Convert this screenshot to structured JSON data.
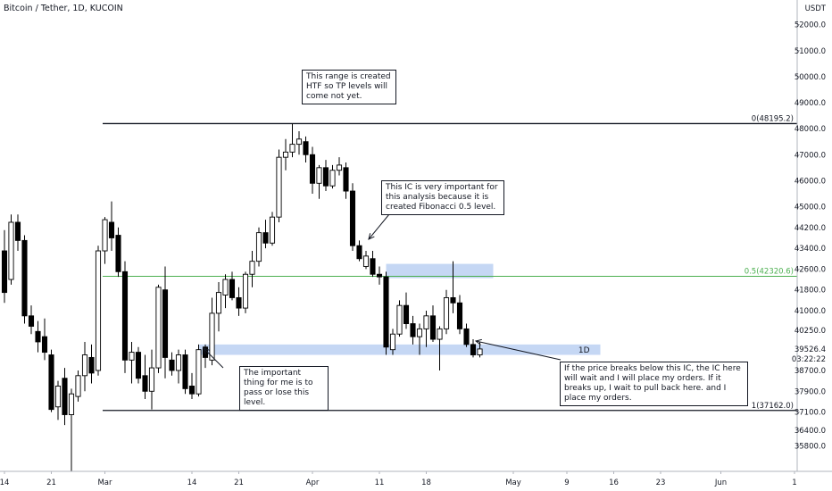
{
  "header": {
    "title": "Bitcoin / Tether, 1D, KUCOIN"
  },
  "currency_label": "USDT",
  "chart_data": {
    "type": "candlestick",
    "title": "Bitcoin / Tether, 1D, KUCOIN",
    "ylim": [
      35300,
      52400
    ],
    "y_ticks": [
      35800,
      36400,
      37100,
      37900,
      38700,
      39526.4,
      40250,
      41000,
      41800,
      42600,
      43400,
      44200,
      45000,
      46000,
      47000,
      48000,
      49000,
      50000,
      51000,
      52000
    ],
    "y_tick_labels": [
      "35800.0",
      "36400.0",
      "37100.0",
      "37900.0",
      "38700.0",
      "",
      "40250.0",
      "41000.0",
      "41800.0",
      "42600.0",
      "43400.0",
      "44200.0",
      "45000.0",
      "46000.0",
      "47000.0",
      "48000.0",
      "49000.0",
      "50000.0",
      "51000.0",
      "52000.0"
    ],
    "current_price": {
      "value": 39526.4,
      "label": "39526.4",
      "countdown": "03:22:22"
    },
    "x_labels": [
      {
        "label": "14",
        "day": 0
      },
      {
        "label": "21",
        "day": 7
      },
      {
        "label": "Mar",
        "day": 15
      },
      {
        "label": "14",
        "day": 28
      },
      {
        "label": "21",
        "day": 35
      },
      {
        "label": "Apr",
        "day": 46
      },
      {
        "label": "11",
        "day": 56
      },
      {
        "label": "18",
        "day": 63
      },
      {
        "label": "May",
        "day": 76
      },
      {
        "label": "9",
        "day": 84
      },
      {
        "label": "16",
        "day": 91
      },
      {
        "label": "23",
        "day": 98
      },
      {
        "label": "Jun",
        "day": 107
      },
      {
        "label": "1",
        "day": 118
      }
    ],
    "candles": [
      {
        "d": 0,
        "o": 43300,
        "h": 44100,
        "l": 41300,
        "c": 41700
      },
      {
        "d": 1,
        "o": 42200,
        "h": 44700,
        "l": 42000,
        "c": 44400
      },
      {
        "d": 2,
        "o": 44400,
        "h": 44700,
        "l": 43300,
        "c": 43700
      },
      {
        "d": 3,
        "o": 43700,
        "h": 43900,
        "l": 40500,
        "c": 40800
      },
      {
        "d": 4,
        "o": 40800,
        "h": 41200,
        "l": 40100,
        "c": 40400
      },
      {
        "d": 5,
        "o": 40200,
        "h": 40600,
        "l": 39400,
        "c": 39800
      },
      {
        "d": 6,
        "o": 40000,
        "h": 40700,
        "l": 39100,
        "c": 39400
      },
      {
        "d": 7,
        "o": 39300,
        "h": 39500,
        "l": 37100,
        "c": 37200
      },
      {
        "d": 8,
        "o": 37300,
        "h": 38300,
        "l": 36800,
        "c": 38100
      },
      {
        "d": 9,
        "o": 38400,
        "h": 38800,
        "l": 36600,
        "c": 37000
      },
      {
        "d": 10,
        "o": 37000,
        "h": 38000,
        "l": 34800,
        "c": 37800
      },
      {
        "d": 11,
        "o": 37700,
        "h": 38700,
        "l": 37500,
        "c": 38500
      },
      {
        "d": 12,
        "o": 38500,
        "h": 39800,
        "l": 37900,
        "c": 39300
      },
      {
        "d": 13,
        "o": 39200,
        "h": 39700,
        "l": 38200,
        "c": 38600
      },
      {
        "d": 14,
        "o": 38700,
        "h": 43500,
        "l": 38500,
        "c": 43300
      },
      {
        "d": 15,
        "o": 43300,
        "h": 44600,
        "l": 42800,
        "c": 44500
      },
      {
        "d": 16,
        "o": 44400,
        "h": 45200,
        "l": 43300,
        "c": 43800
      },
      {
        "d": 17,
        "o": 43900,
        "h": 44200,
        "l": 42300,
        "c": 42500
      },
      {
        "d": 18,
        "o": 42500,
        "h": 42900,
        "l": 38600,
        "c": 39100
      },
      {
        "d": 19,
        "o": 39100,
        "h": 39800,
        "l": 38200,
        "c": 39400
      },
      {
        "d": 20,
        "o": 39400,
        "h": 39600,
        "l": 38200,
        "c": 38400
      },
      {
        "d": 21,
        "o": 38500,
        "h": 39300,
        "l": 37600,
        "c": 37900
      },
      {
        "d": 22,
        "o": 37900,
        "h": 39500,
        "l": 37200,
        "c": 38800
      },
      {
        "d": 23,
        "o": 38800,
        "h": 42000,
        "l": 38600,
        "c": 41900
      },
      {
        "d": 24,
        "o": 41800,
        "h": 42700,
        "l": 38400,
        "c": 39200
      },
      {
        "d": 25,
        "o": 39100,
        "h": 39400,
        "l": 38500,
        "c": 38700
      },
      {
        "d": 26,
        "o": 38700,
        "h": 39500,
        "l": 38200,
        "c": 39300
      },
      {
        "d": 27,
        "o": 39300,
        "h": 39500,
        "l": 37800,
        "c": 38000
      },
      {
        "d": 28,
        "o": 38100,
        "h": 38600,
        "l": 37600,
        "c": 37800
      },
      {
        "d": 29,
        "o": 37800,
        "h": 39700,
        "l": 37700,
        "c": 39500
      },
      {
        "d": 30,
        "o": 39600,
        "h": 39700,
        "l": 38800,
        "c": 39200
      },
      {
        "d": 31,
        "o": 39100,
        "h": 41500,
        "l": 38900,
        "c": 40900
      },
      {
        "d": 32,
        "o": 40900,
        "h": 42100,
        "l": 40200,
        "c": 41700
      },
      {
        "d": 33,
        "o": 41600,
        "h": 42400,
        "l": 41100,
        "c": 42200
      },
      {
        "d": 34,
        "o": 42200,
        "h": 42500,
        "l": 41400,
        "c": 41500
      },
      {
        "d": 35,
        "o": 41500,
        "h": 41900,
        "l": 40800,
        "c": 41100
      },
      {
        "d": 36,
        "o": 41100,
        "h": 42500,
        "l": 40900,
        "c": 42400
      },
      {
        "d": 37,
        "o": 42400,
        "h": 43300,
        "l": 41900,
        "c": 42900
      },
      {
        "d": 38,
        "o": 42900,
        "h": 44200,
        "l": 42700,
        "c": 44000
      },
      {
        "d": 39,
        "o": 44000,
        "h": 44500,
        "l": 43400,
        "c": 43600
      },
      {
        "d": 40,
        "o": 43600,
        "h": 44800,
        "l": 43500,
        "c": 44600
      },
      {
        "d": 41,
        "o": 44600,
        "h": 47200,
        "l": 44400,
        "c": 46900
      },
      {
        "d": 42,
        "o": 46900,
        "h": 47600,
        "l": 46400,
        "c": 47100
      },
      {
        "d": 43,
        "o": 47100,
        "h": 48195,
        "l": 46900,
        "c": 47400
      },
      {
        "d": 44,
        "o": 47400,
        "h": 47900,
        "l": 47000,
        "c": 47600
      },
      {
        "d": 45,
        "o": 47500,
        "h": 47700,
        "l": 46700,
        "c": 47000
      },
      {
        "d": 46,
        "o": 47000,
        "h": 47300,
        "l": 45500,
        "c": 45900
      },
      {
        "d": 47,
        "o": 45900,
        "h": 46600,
        "l": 45300,
        "c": 46500
      },
      {
        "d": 48,
        "o": 46500,
        "h": 46800,
        "l": 45600,
        "c": 45800
      },
      {
        "d": 49,
        "o": 45800,
        "h": 46600,
        "l": 45700,
        "c": 46400
      },
      {
        "d": 50,
        "o": 46400,
        "h": 46900,
        "l": 46200,
        "c": 46600
      },
      {
        "d": 51,
        "o": 46500,
        "h": 46700,
        "l": 45300,
        "c": 45600
      },
      {
        "d": 52,
        "o": 45600,
        "h": 45900,
        "l": 43300,
        "c": 43500
      },
      {
        "d": 53,
        "o": 43500,
        "h": 43700,
        "l": 42900,
        "c": 43000
      },
      {
        "d": 54,
        "o": 42700,
        "h": 43300,
        "l": 42600,
        "c": 43100
      },
      {
        "d": 55,
        "o": 43000,
        "h": 43300,
        "l": 42300,
        "c": 42400
      },
      {
        "d": 56,
        "o": 42400,
        "h": 42700,
        "l": 42000,
        "c": 42300
      },
      {
        "d": 57,
        "o": 42300,
        "h": 42500,
        "l": 39300,
        "c": 39600
      },
      {
        "d": 58,
        "o": 39500,
        "h": 40300,
        "l": 39300,
        "c": 40100
      },
      {
        "d": 59,
        "o": 40100,
        "h": 41400,
        "l": 40000,
        "c": 41200
      },
      {
        "d": 60,
        "o": 41200,
        "h": 41700,
        "l": 40300,
        "c": 40500
      },
      {
        "d": 61,
        "o": 40500,
        "h": 40800,
        "l": 39700,
        "c": 40000
      },
      {
        "d": 62,
        "o": 40000,
        "h": 40500,
        "l": 39300,
        "c": 40300
      },
      {
        "d": 63,
        "o": 40300,
        "h": 41000,
        "l": 39600,
        "c": 40800
      },
      {
        "d": 64,
        "o": 40800,
        "h": 41200,
        "l": 39800,
        "c": 39900
      },
      {
        "d": 65,
        "o": 39900,
        "h": 40400,
        "l": 38700,
        "c": 40300
      },
      {
        "d": 66,
        "o": 40300,
        "h": 41800,
        "l": 40100,
        "c": 41500
      },
      {
        "d": 67,
        "o": 41500,
        "h": 42900,
        "l": 40900,
        "c": 41300
      },
      {
        "d": 68,
        "o": 41300,
        "h": 41600,
        "l": 40100,
        "c": 40300
      },
      {
        "d": 69,
        "o": 40300,
        "h": 40500,
        "l": 39600,
        "c": 39700
      },
      {
        "d": 70,
        "o": 39700,
        "h": 39900,
        "l": 39200,
        "c": 39300
      },
      {
        "d": 71,
        "o": 39300,
        "h": 39800,
        "l": 39200,
        "c": 39526.4
      }
    ],
    "horizontal_levels": [
      {
        "price": 48195.2,
        "label": "0(48195.2)",
        "color": "#131722"
      },
      {
        "price": 42320.6,
        "label": "0.5(42320.6)",
        "color": "#4caf50"
      },
      {
        "price": 37162.0,
        "label": "1(37162.0)",
        "color": "#131722"
      }
    ],
    "zones": [
      {
        "name": "ic-zone-upper",
        "x_from": 57,
        "x_to": 73,
        "y_low": 42250,
        "y_high": 42800,
        "label": ""
      },
      {
        "name": "ic-zone-lower",
        "x_from": 29,
        "x_to": 89,
        "y_low": 39300,
        "y_high": 39700,
        "label": "1D"
      }
    ],
    "annotations": [
      "This range is created HTF so TP levels will come not yet.",
      "This IC is very important for this analysis because it is created Fibonacci 0.5 level.",
      "The important thing for me is to pass or lose this level.",
      "If the price breaks below this IC, the IC here will wait and I will place my orders. If it breaks up, I wait to pull back here. and I place my orders."
    ],
    "colors": {
      "up": "#ffffff",
      "down": "#000000",
      "outline": "#000000",
      "zone": "#bbd0f2",
      "fib_mid": "#4caf50",
      "grid": "#e0e3eb",
      "axis_text": "#131722"
    }
  }
}
